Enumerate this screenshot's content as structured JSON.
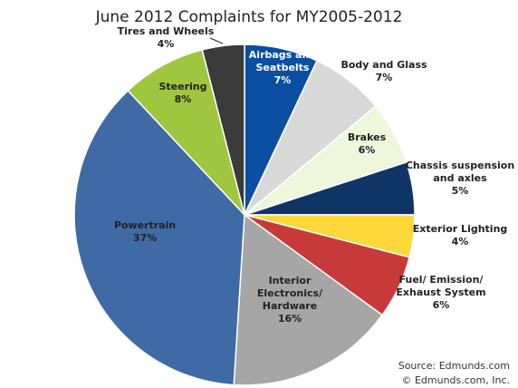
{
  "chart_data": {
    "type": "pie",
    "title": "June 2012 Complaints for MY2005-2012",
    "slices": [
      {
        "label": "Airbags and Seatbelts",
        "lines": [
          "Airbags and",
          "Seatbelts"
        ],
        "value_label": "7%",
        "value": 7,
        "color": "#0b4fa3"
      },
      {
        "label": "Body and Glass",
        "lines": [
          "Body and Glass"
        ],
        "value_label": "7%",
        "value": 7,
        "color": "#d9d9d9"
      },
      {
        "label": "Brakes",
        "lines": [
          "Brakes"
        ],
        "value_label": "6%",
        "value": 6,
        "color": "#eef6dc"
      },
      {
        "label": "Chassis suspension and axles",
        "lines": [
          "Chassis suspension",
          "and axles"
        ],
        "value_label": "5%",
        "value": 5,
        "color": "#0f3566"
      },
      {
        "label": "Exterior Lighting",
        "lines": [
          "Exterior Lighting"
        ],
        "value_label": "4%",
        "value": 4,
        "color": "#fcd83a"
      },
      {
        "label": "Fuel/ Emission/ Exhaust System",
        "lines": [
          "Fuel/ Emission/",
          "Exhaust System"
        ],
        "value_label": "6%",
        "value": 6,
        "color": "#c83a3a"
      },
      {
        "label": "Interior Electronics/ Hardware",
        "lines": [
          "Interior",
          "Electronics/",
          "Hardware"
        ],
        "value_label": "16%",
        "value": 16,
        "color": "#a6a6a6"
      },
      {
        "label": "Powertrain",
        "lines": [
          "Powertrain"
        ],
        "value_label": "37%",
        "value": 37,
        "color": "#3f6aa6"
      },
      {
        "label": "Steering",
        "lines": [
          "Steering"
        ],
        "value_label": "8%",
        "value": 8,
        "color": "#9fc63e"
      },
      {
        "label": "Tires and Wheels",
        "lines": [
          "Tires and Wheels"
        ],
        "value_label": "4%",
        "value": 4,
        "color": "#3a3a3a"
      }
    ]
  },
  "source": {
    "line1": "Source: Edmunds.com",
    "line2": "© Edmunds.com, Inc."
  }
}
